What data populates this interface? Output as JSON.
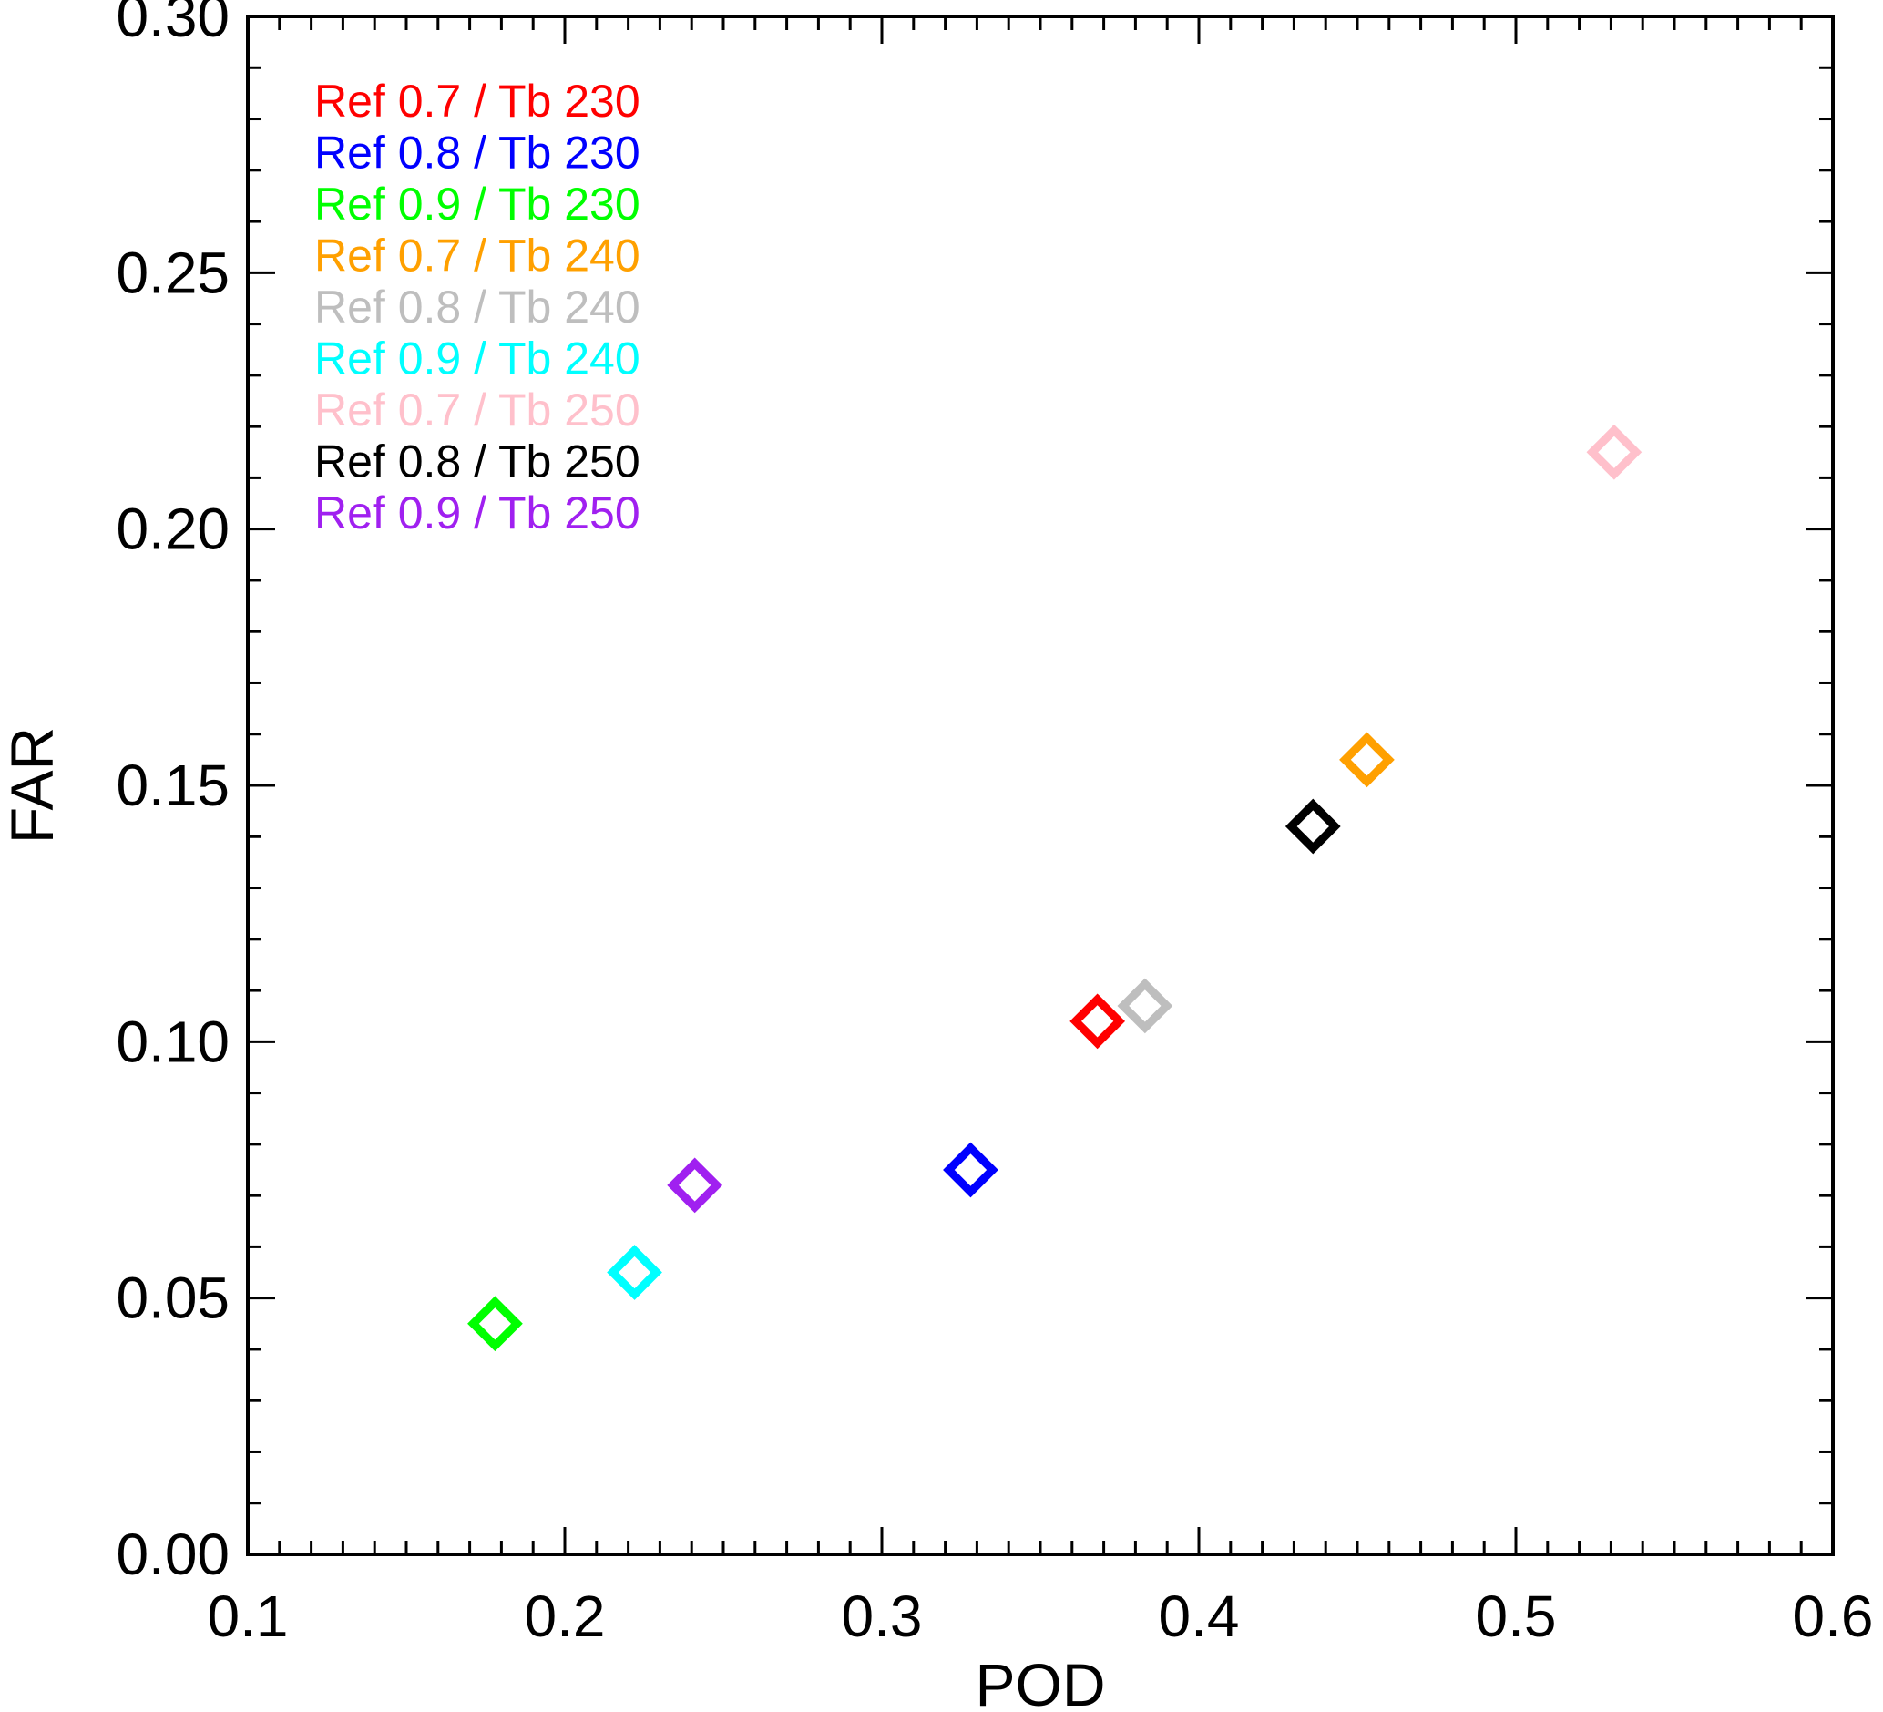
{
  "chart_data": {
    "type": "scatter",
    "xlabel": "POD",
    "ylabel": "FAR",
    "xlim": [
      0.1,
      0.6
    ],
    "ylim": [
      0.0,
      0.3
    ],
    "xticks": [
      "0.1",
      "0.2",
      "0.3",
      "0.4",
      "0.5",
      "0.6"
    ],
    "yticks": [
      "0.00",
      "0.05",
      "0.10",
      "0.15",
      "0.20",
      "0.25",
      "0.30"
    ],
    "legend_position": "top-left",
    "series": [
      {
        "name": "Ref 0.7 / Tb 230",
        "color": "#ff0000",
        "x": 0.368,
        "y": 0.104
      },
      {
        "name": "Ref 0.8 / Tb 230",
        "color": "#0000ff",
        "x": 0.328,
        "y": 0.075
      },
      {
        "name": "Ref 0.9 / Tb 230",
        "color": "#00ff00",
        "x": 0.178,
        "y": 0.045
      },
      {
        "name": "Ref 0.7 / Tb 240",
        "color": "#ffa000",
        "x": 0.453,
        "y": 0.155
      },
      {
        "name": "Ref 0.8 / Tb 240",
        "color": "#bebebe",
        "x": 0.383,
        "y": 0.107
      },
      {
        "name": "Ref 0.9 / Tb 240",
        "color": "#00ffff",
        "x": 0.222,
        "y": 0.055
      },
      {
        "name": "Ref 0.7 / Tb 250",
        "color": "#ffc0cb",
        "x": 0.531,
        "y": 0.215
      },
      {
        "name": "Ref 0.8 / Tb 250",
        "color": "#000000",
        "x": 0.436,
        "y": 0.142
      },
      {
        "name": "Ref 0.9 / Tb 250",
        "color": "#a020f0",
        "x": 0.241,
        "y": 0.072
      }
    ]
  }
}
